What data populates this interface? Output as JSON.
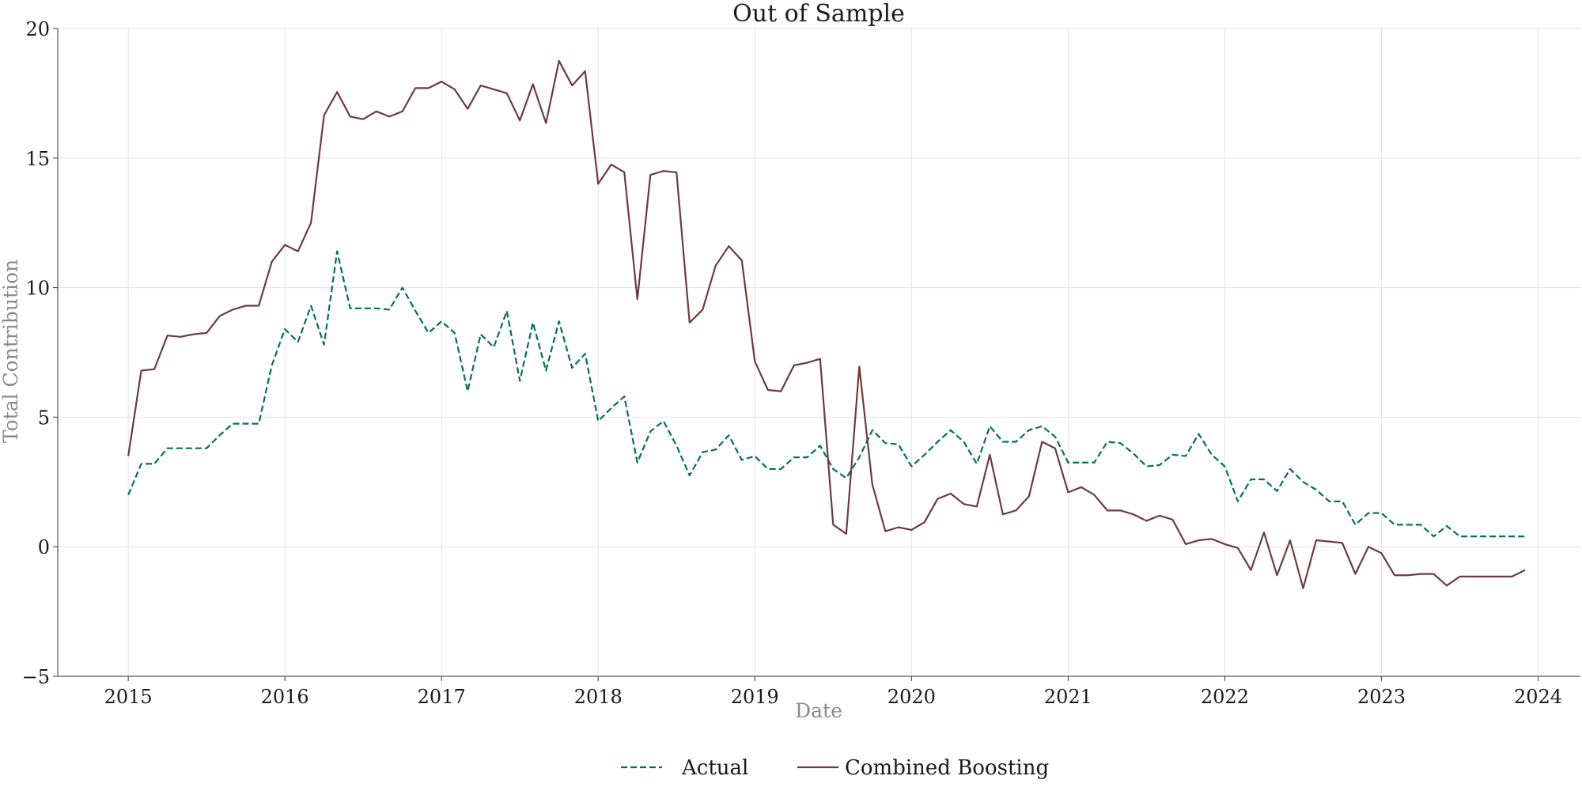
{
  "chart_data": {
    "type": "line",
    "title": "Out of Sample",
    "xlabel": "Date",
    "ylabel": "Total Contribution",
    "xlim": [
      2014.55,
      2024.27
    ],
    "ylim": [
      -5,
      20
    ],
    "x_ticks": [
      2015,
      2016,
      2017,
      2018,
      2019,
      2020,
      2021,
      2022,
      2023,
      2024
    ],
    "x_tick_labels": [
      "2015",
      "2016",
      "2017",
      "2018",
      "2019",
      "2020",
      "2021",
      "2022",
      "2023",
      "2024"
    ],
    "y_ticks": [
      -5,
      0,
      5,
      10,
      15,
      20
    ],
    "y_tick_labels": [
      "−5",
      "0",
      "5",
      "10",
      "15",
      "20"
    ],
    "grid": true,
    "legend_position": "bottom-center",
    "x_start": 2015.0,
    "x_step": 0.08333333,
    "series": [
      {
        "name": "Actual",
        "color": "#007060",
        "style": "dashed",
        "values": [
          2.0,
          3.2,
          3.2,
          3.8,
          3.8,
          3.8,
          3.8,
          4.3,
          4.75,
          4.75,
          4.75,
          7.0,
          8.4,
          7.9,
          9.3,
          7.8,
          11.4,
          9.2,
          9.2,
          9.2,
          9.15,
          10.0,
          9.1,
          8.25,
          8.7,
          8.25,
          6.0,
          8.2,
          7.7,
          9.1,
          6.4,
          8.65,
          6.8,
          8.7,
          6.9,
          7.45,
          4.85,
          5.35,
          5.8,
          3.25,
          4.45,
          4.85,
          3.9,
          2.75,
          3.65,
          3.75,
          4.3,
          3.35,
          3.5,
          3.0,
          3.0,
          3.45,
          3.45,
          3.9,
          3.0,
          2.65,
          3.45,
          4.5,
          4.0,
          3.95,
          3.1,
          3.55,
          4.05,
          4.5,
          4.05,
          3.2,
          4.65,
          4.05,
          4.05,
          4.5,
          4.65,
          4.25,
          3.25,
          3.25,
          3.25,
          4.05,
          4.0,
          3.6,
          3.1,
          3.15,
          3.55,
          3.5,
          4.35,
          3.55,
          3.1,
          1.75,
          2.6,
          2.6,
          2.15,
          3.0,
          2.5,
          2.2,
          1.75,
          1.75,
          0.85,
          1.3,
          1.3,
          0.85,
          0.85,
          0.85,
          0.4,
          0.8,
          0.4,
          0.4,
          0.4,
          0.4,
          0.4,
          0.4
        ]
      },
      {
        "name": "Combined Boosting",
        "color": "#6e3a3f",
        "style": "solid",
        "values": [
          3.5,
          6.8,
          6.85,
          8.15,
          8.1,
          8.2,
          8.25,
          8.9,
          9.15,
          9.3,
          9.3,
          11.0,
          11.65,
          11.4,
          12.5,
          16.65,
          17.55,
          16.6,
          16.5,
          16.8,
          16.6,
          16.8,
          17.7,
          17.7,
          17.95,
          17.65,
          16.9,
          17.8,
          17.65,
          17.5,
          16.45,
          17.85,
          16.35,
          18.75,
          17.8,
          18.35,
          14.0,
          14.75,
          14.45,
          9.55,
          14.35,
          14.5,
          14.45,
          8.65,
          9.15,
          10.85,
          11.6,
          11.05,
          7.15,
          6.05,
          6.0,
          7.0,
          7.1,
          7.25,
          0.85,
          0.5,
          6.95,
          2.4,
          0.6,
          0.75,
          0.65,
          0.95,
          1.85,
          2.05,
          1.65,
          1.55,
          3.55,
          1.25,
          1.4,
          1.95,
          4.05,
          3.8,
          2.1,
          2.3,
          2.0,
          1.4,
          1.4,
          1.25,
          1.0,
          1.2,
          1.05,
          0.1,
          0.25,
          0.3,
          0.1,
          -0.05,
          -0.9,
          0.55,
          -1.1,
          0.25,
          -1.6,
          0.25,
          0.2,
          0.15,
          -1.05,
          0.0,
          -0.25,
          -1.1,
          -1.1,
          -1.05,
          -1.05,
          -1.5,
          -1.15,
          -1.15,
          -1.15,
          -1.15,
          -1.15,
          -0.9
        ]
      }
    ]
  }
}
